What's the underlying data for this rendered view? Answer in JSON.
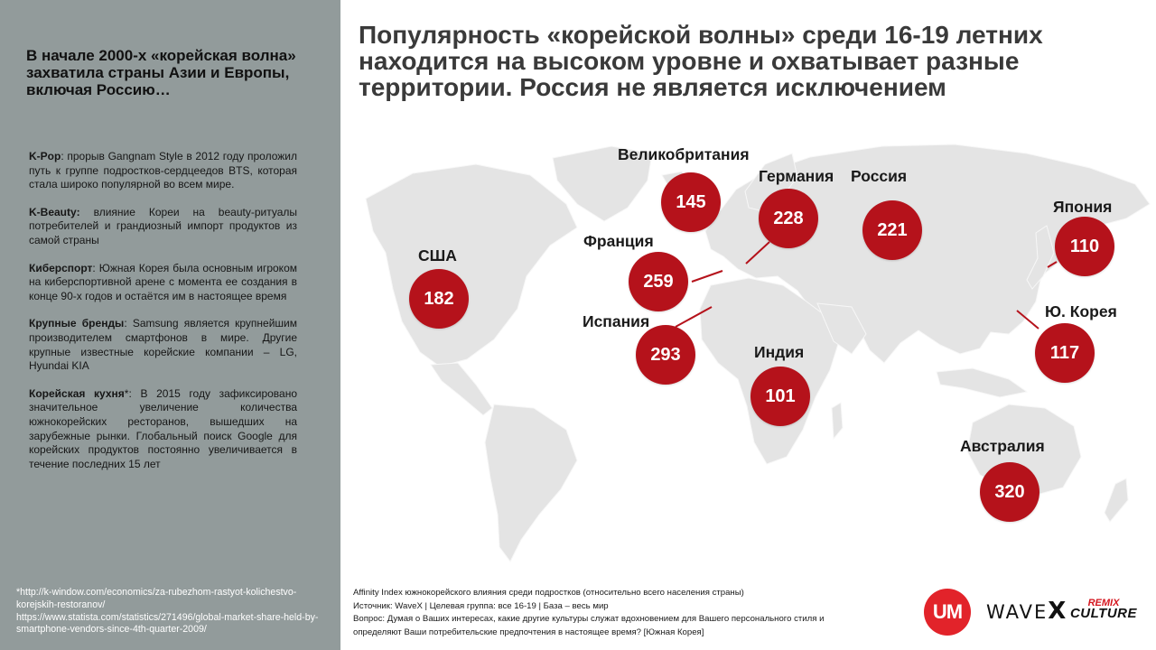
{
  "sidebar": {
    "title": "В начале 2000-х «корейская волна» захватила страны Азии и Европы, включая Россию…",
    "facts": [
      {
        "label": "K-Pop",
        "text": ": прорыв Gangnam Style в 2012 году проложил путь к группе подростков-сердцеедов BTS, которая стала широко популярной во всем мире."
      },
      {
        "label": "K-Beauty:",
        "text": " влияние Кореи на beauty-ритуалы потребителей и грандиозный импорт продуктов из самой страны"
      },
      {
        "label": "Киберспорт",
        "text": ": Южная Корея была основным игроком на киберспортивной арене с момента ее создания в конце 90-х годов и остаётся им в настоящее время"
      },
      {
        "label": "Крупные бренды",
        "text": ": Samsung является крупнейшим производителем смартфонов в мире. Другие крупные известные корейские компании – LG, Hyundai KIA"
      },
      {
        "label": "Корейская кухня",
        "text": "*: В 2015 году зафиксировано значительное увеличение количества южнокорейских ресторанов, вышедших на зарубежные рынки. Глобальный поиск Google для корейских продуктов постоянно увеличивается в течение последних 15 лет"
      }
    ],
    "sources": [
      "*http://k-window.com/economics/za-rubezhom-rastyot-kolichestvo-korejskih-restoranov/",
      "https://www.statista.com/statistics/271496/global-market-share-held-by-smartphone-vendors-since-4th-quarter-2009/"
    ]
  },
  "headline": "Популярность «корейской волны» среди 16-19 летних находится на высоком уровне и охватывает разные территории. Россия не является исключением",
  "markers": [
    {
      "id": "usa",
      "country": "США",
      "value": "182"
    },
    {
      "id": "uk",
      "country": "Великобритания",
      "value": "145"
    },
    {
      "id": "france",
      "country": "Франция",
      "value": "259"
    },
    {
      "id": "spain",
      "country": "Испания",
      "value": "293"
    },
    {
      "id": "germany",
      "country": "Германия",
      "value": "228"
    },
    {
      "id": "russia",
      "country": "Россия",
      "value": "221"
    },
    {
      "id": "india",
      "country": "Индия",
      "value": "101"
    },
    {
      "id": "japan",
      "country": "Япония",
      "value": "110"
    },
    {
      "id": "korea",
      "country": "Ю. Корея",
      "value": "117"
    },
    {
      "id": "australia",
      "country": "Австралия",
      "value": "320"
    }
  ],
  "note": {
    "line1": "Affinity Index южнокорейского влияния среди подростков (относительно всего населения страны)",
    "line2": "Источник:  WaveX | Целевая группа: все 16-19 | База  – весь мир",
    "line3": "Вопрос: Думая о Ваших интересах, какие другие культуры служат вдохновением для Вашего персонального стиля и определяют Ваши потребительские предпочтения в настоящее время? [Южная Корея]"
  },
  "logos": {
    "um": "UM",
    "wavex_prefix": "WAVE",
    "wavex_suffix": "X",
    "remix_top": "REMIX",
    "remix_bottom": "CULTURE"
  },
  "colors": {
    "panel": "#929b9b",
    "bubble": "#b5121b",
    "map": "#e4e4e4",
    "um_logo": "#e2232a"
  }
}
